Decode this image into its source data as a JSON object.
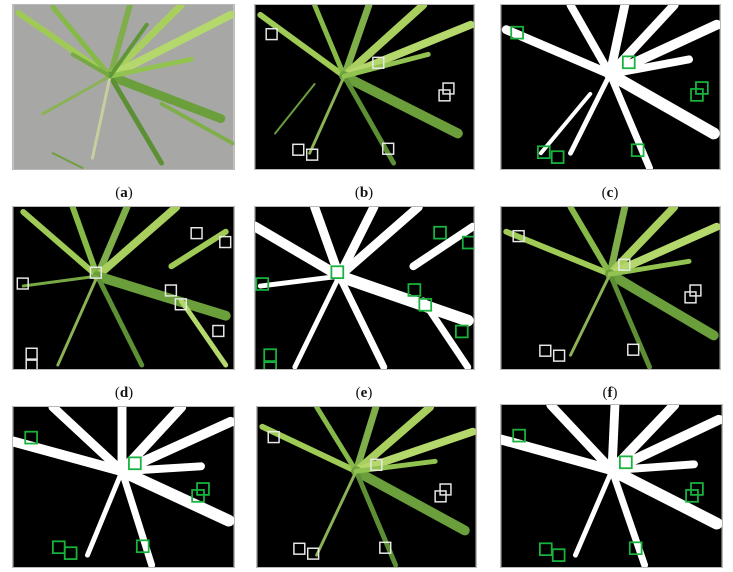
{
  "figure": {
    "panels": [
      {
        "id": "a",
        "label_prefix": "(",
        "label_letter": "a",
        "label_suffix": ")",
        "kind": "photo",
        "box_color": "none"
      },
      {
        "id": "b",
        "label_prefix": "(",
        "label_letter": "b",
        "label_suffix": ")",
        "kind": "segmented-photo",
        "box_color": "#e8e8e8"
      },
      {
        "id": "c",
        "label_prefix": "(",
        "label_letter": "c",
        "label_suffix": ")",
        "kind": "binary-mask",
        "box_color": "#17b33c"
      },
      {
        "id": "d",
        "label_prefix": "(",
        "label_letter": "d",
        "label_suffix": ")",
        "kind": "segmented-photo",
        "box_color": "#e8e8e8"
      },
      {
        "id": "e",
        "label_prefix": "(",
        "label_letter": "e",
        "label_suffix": ")",
        "kind": "binary-mask",
        "box_color": "#17b33c"
      },
      {
        "id": "f",
        "label_prefix": "(",
        "label_letter": "f",
        "label_suffix": ")",
        "kind": "segmented-photo",
        "box_color": "#e8e8e8"
      },
      {
        "id": "g",
        "label_prefix": "",
        "label_letter": "",
        "label_suffix": "",
        "kind": "binary-mask",
        "box_color": "#17b33c"
      },
      {
        "id": "h",
        "label_prefix": "",
        "label_letter": "",
        "label_suffix": "",
        "kind": "segmented-photo",
        "box_color": "#e8e8e8"
      },
      {
        "id": "i",
        "label_prefix": "",
        "label_letter": "",
        "label_suffix": "",
        "kind": "binary-mask",
        "box_color": "#17b33c"
      }
    ],
    "colors": {
      "soil": "#a7a8a6",
      "leaf_light": "#a9cf5e",
      "leaf_mid": "#7fae4a",
      "leaf_dark": "#4f7d33",
      "background_black": "#000000",
      "mask_white": "#ffffff"
    }
  }
}
